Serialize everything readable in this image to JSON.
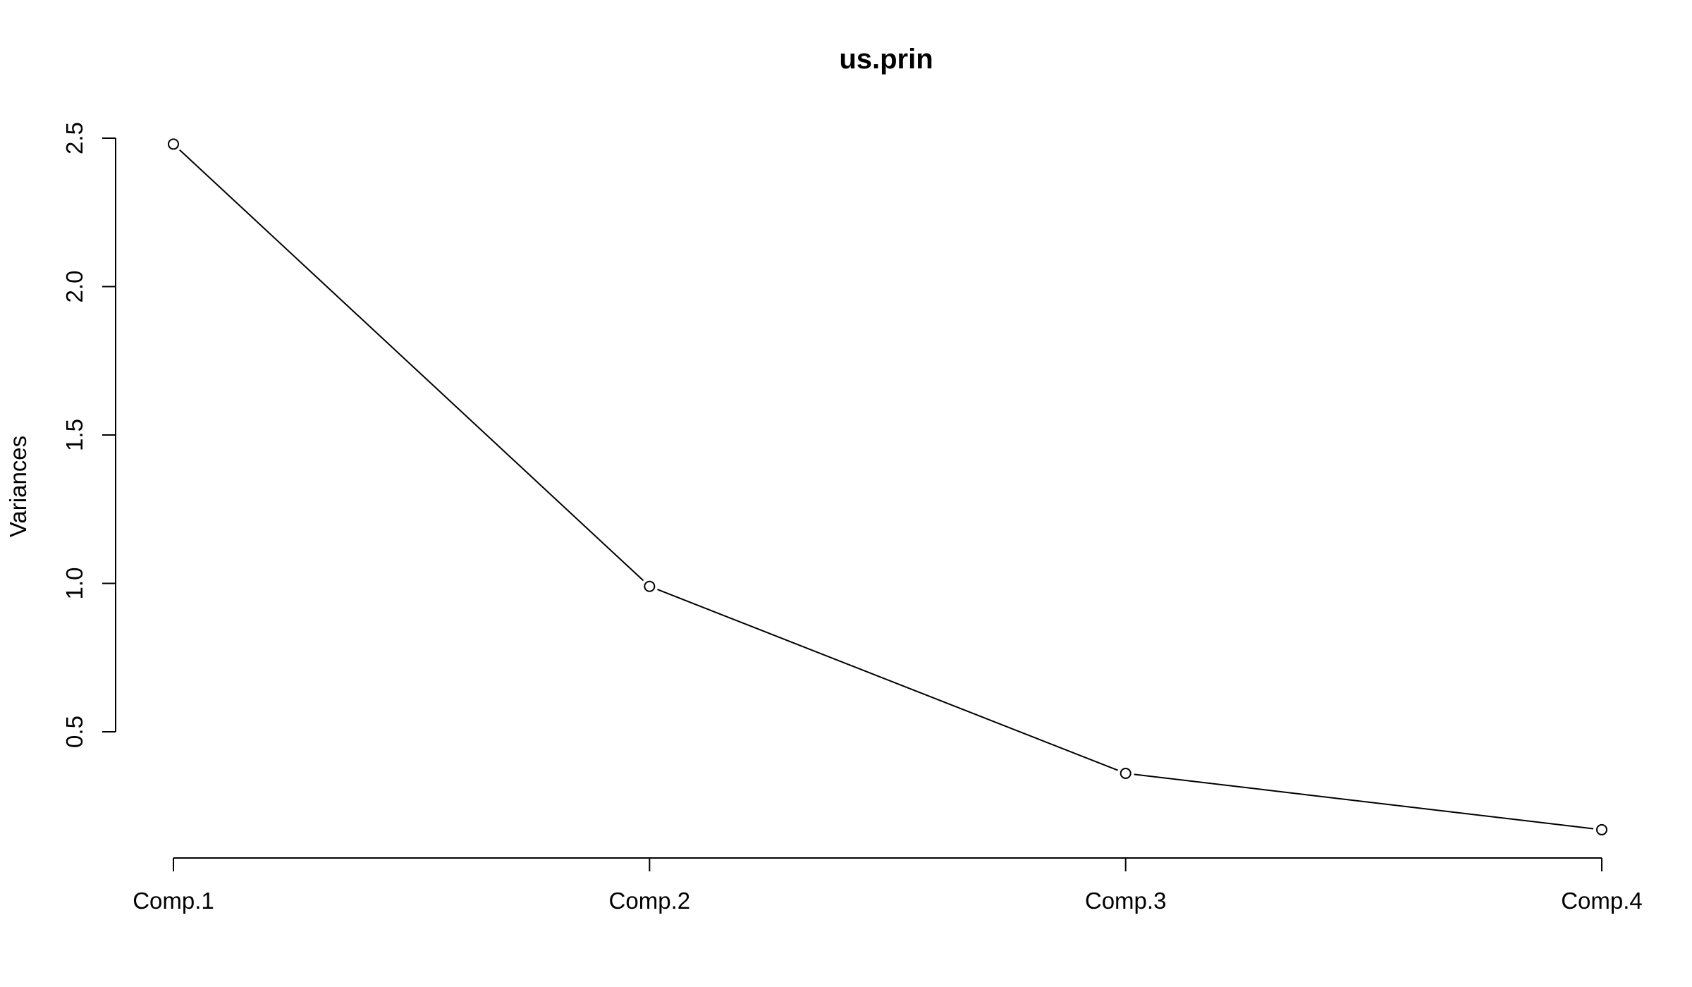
{
  "chart_data": {
    "type": "line",
    "title": "us.prin",
    "xlabel": "",
    "ylabel": "Variances",
    "categories": [
      "Comp.1",
      "Comp.2",
      "Comp.3",
      "Comp.4"
    ],
    "values": [
      2.48,
      0.99,
      0.36,
      0.17
    ],
    "yticks": [
      0.5,
      1.0,
      1.5,
      2.0,
      2.5
    ],
    "ytick_labels": [
      "0.5",
      "1.0",
      "1.5",
      "2.0",
      "2.5"
    ],
    "markers": "open-circle",
    "grid": false,
    "colors": {
      "line": "#000000",
      "marker_fill": "#ffffff",
      "background": "#ffffff"
    }
  }
}
